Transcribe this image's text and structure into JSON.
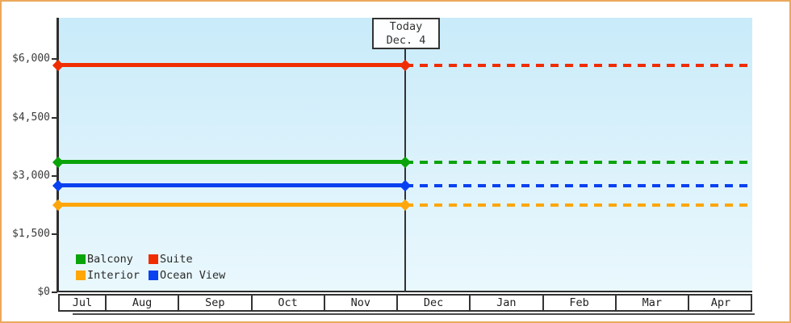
{
  "colors": {
    "frame_border": "#eca75c",
    "plot_top": "#c9ebfa",
    "plot_bottom": "#e9f8fd",
    "axis": "#2e2e2e",
    "text": "#3a3a3a"
  },
  "chart_data": {
    "type": "line",
    "title": "",
    "xlabel": "",
    "ylabel": "",
    "categories": [
      "Jul",
      "Aug",
      "Sep",
      "Oct",
      "Nov",
      "Dec",
      "Jan",
      "Feb",
      "Mar",
      "Apr"
    ],
    "yticks": {
      "values": [
        0,
        1500,
        3000,
        4500,
        6000
      ],
      "labels": [
        "$0",
        "$1,500",
        "$3,000",
        "$4,500",
        "$6,000"
      ]
    },
    "ylim": [
      0,
      7070
    ],
    "grid": false,
    "legend_position": "bottom-left-inside",
    "series": [
      {
        "name": "Suite",
        "color": "#f02d00",
        "value": 5850,
        "past_style": "solid",
        "future_style": "dotted"
      },
      {
        "name": "Balcony",
        "color": "#0aa40a",
        "value": 3350,
        "past_style": "solid",
        "future_style": "dotted"
      },
      {
        "name": "Ocean View",
        "color": "#0841f0",
        "value": 2750,
        "past_style": "solid",
        "future_style": "dotted"
      },
      {
        "name": "Interior",
        "color": "#ffa60a",
        "value": 2250,
        "past_style": "solid",
        "future_style": "dotted"
      }
    ],
    "legend_order": [
      "Balcony",
      "Suite",
      "Interior",
      "Ocean View"
    ],
    "annotation": {
      "line1": "Today",
      "line2": "Dec. 4",
      "x_category": "Dec"
    }
  }
}
